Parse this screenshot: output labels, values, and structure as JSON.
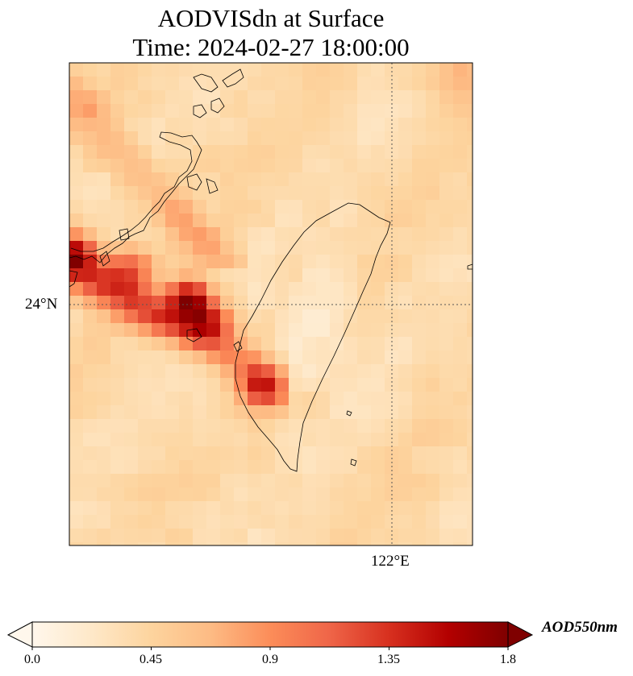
{
  "title": {
    "line1": "AODVISdn at Surface",
    "line2": "Time: 2024-02-27 18:00:00"
  },
  "map": {
    "lat_label": "24°N",
    "lon_label": "122°E"
  },
  "colorbar": {
    "label": "AOD550nm",
    "ticks": [
      "0.0",
      "0.45",
      "0.9",
      "1.35",
      "1.8"
    ],
    "range": [
      0.0,
      1.8
    ],
    "colormap": "OrRd",
    "colors": [
      "#fff7ec",
      "#fee8c8",
      "#fdd49e",
      "#fdbb84",
      "#fc8d59",
      "#ef6548",
      "#d7301f",
      "#b30000",
      "#7f0000"
    ]
  }
}
